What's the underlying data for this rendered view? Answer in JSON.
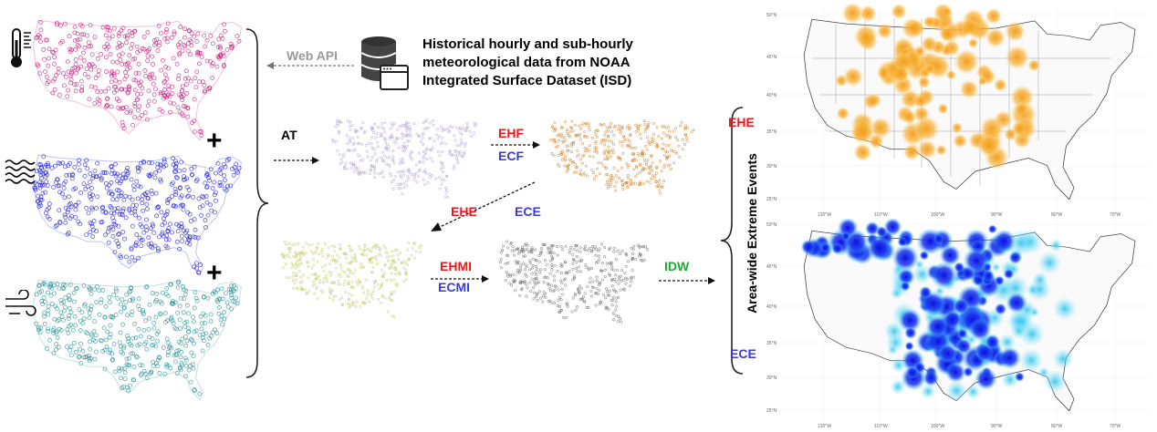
{
  "source": {
    "text_line1": "Historical hourly and sub-hourly",
    "text_line2": "meteorological data from NOAA",
    "text_line3": "Integrated Surface Dataset (ISD)",
    "icon": "database-window-icon"
  },
  "arrows": {
    "web_api": "Web API",
    "at": "AT",
    "idw": "IDW"
  },
  "indices": {
    "ehf": "EHF",
    "ecf": "ECF",
    "ehmi": "EHMI",
    "ecmi": "ECMI"
  },
  "events": {
    "ehe_diag": "EHE",
    "ece_diag": "ECE",
    "ehe_map": "EHE",
    "ece_map": "ECE",
    "axis_title": "Area-wide Extreme Events"
  },
  "operators": {
    "plus1": "+",
    "plus2": "+"
  },
  "input_maps": [
    {
      "variable": "temperature",
      "icon": "thermometer-icon",
      "color": "#c2187a"
    },
    {
      "variable": "humidity",
      "icon": "humidity-waves-icon",
      "color": "#1a1ad6"
    },
    {
      "variable": "wind",
      "icon": "wind-icon",
      "color": "#1f8f94"
    }
  ],
  "stage_maps": [
    {
      "stage": "AT",
      "color": "#b39bd1"
    },
    {
      "stage": "EHF/ECF",
      "color": "#cc7a1e"
    },
    {
      "stage": "EHMI/ECMI",
      "color": "#c3c466"
    },
    {
      "stage": "IDW input",
      "color": "#666666"
    }
  ],
  "result_maps": {
    "ehe": {
      "lat_ticks": [
        "50°N",
        "45°N",
        "40°N",
        "35°N",
        "30°N",
        "25°N"
      ],
      "lon_ticks": [
        "120°W",
        "110°W",
        "100°W",
        "90°W",
        "80°W",
        "70°W"
      ],
      "colors": [
        "#f5a623",
        "#ffd37a"
      ]
    },
    "ece": {
      "lat_ticks": [
        "50°N",
        "45°N",
        "40°N",
        "35°N",
        "30°N",
        "25°N"
      ],
      "lon_ticks": [
        "120°W",
        "110°W",
        "100°W",
        "90°W",
        "80°W",
        "70°W"
      ],
      "colors": [
        "#0a10d8",
        "#3ad0f0"
      ]
    }
  }
}
